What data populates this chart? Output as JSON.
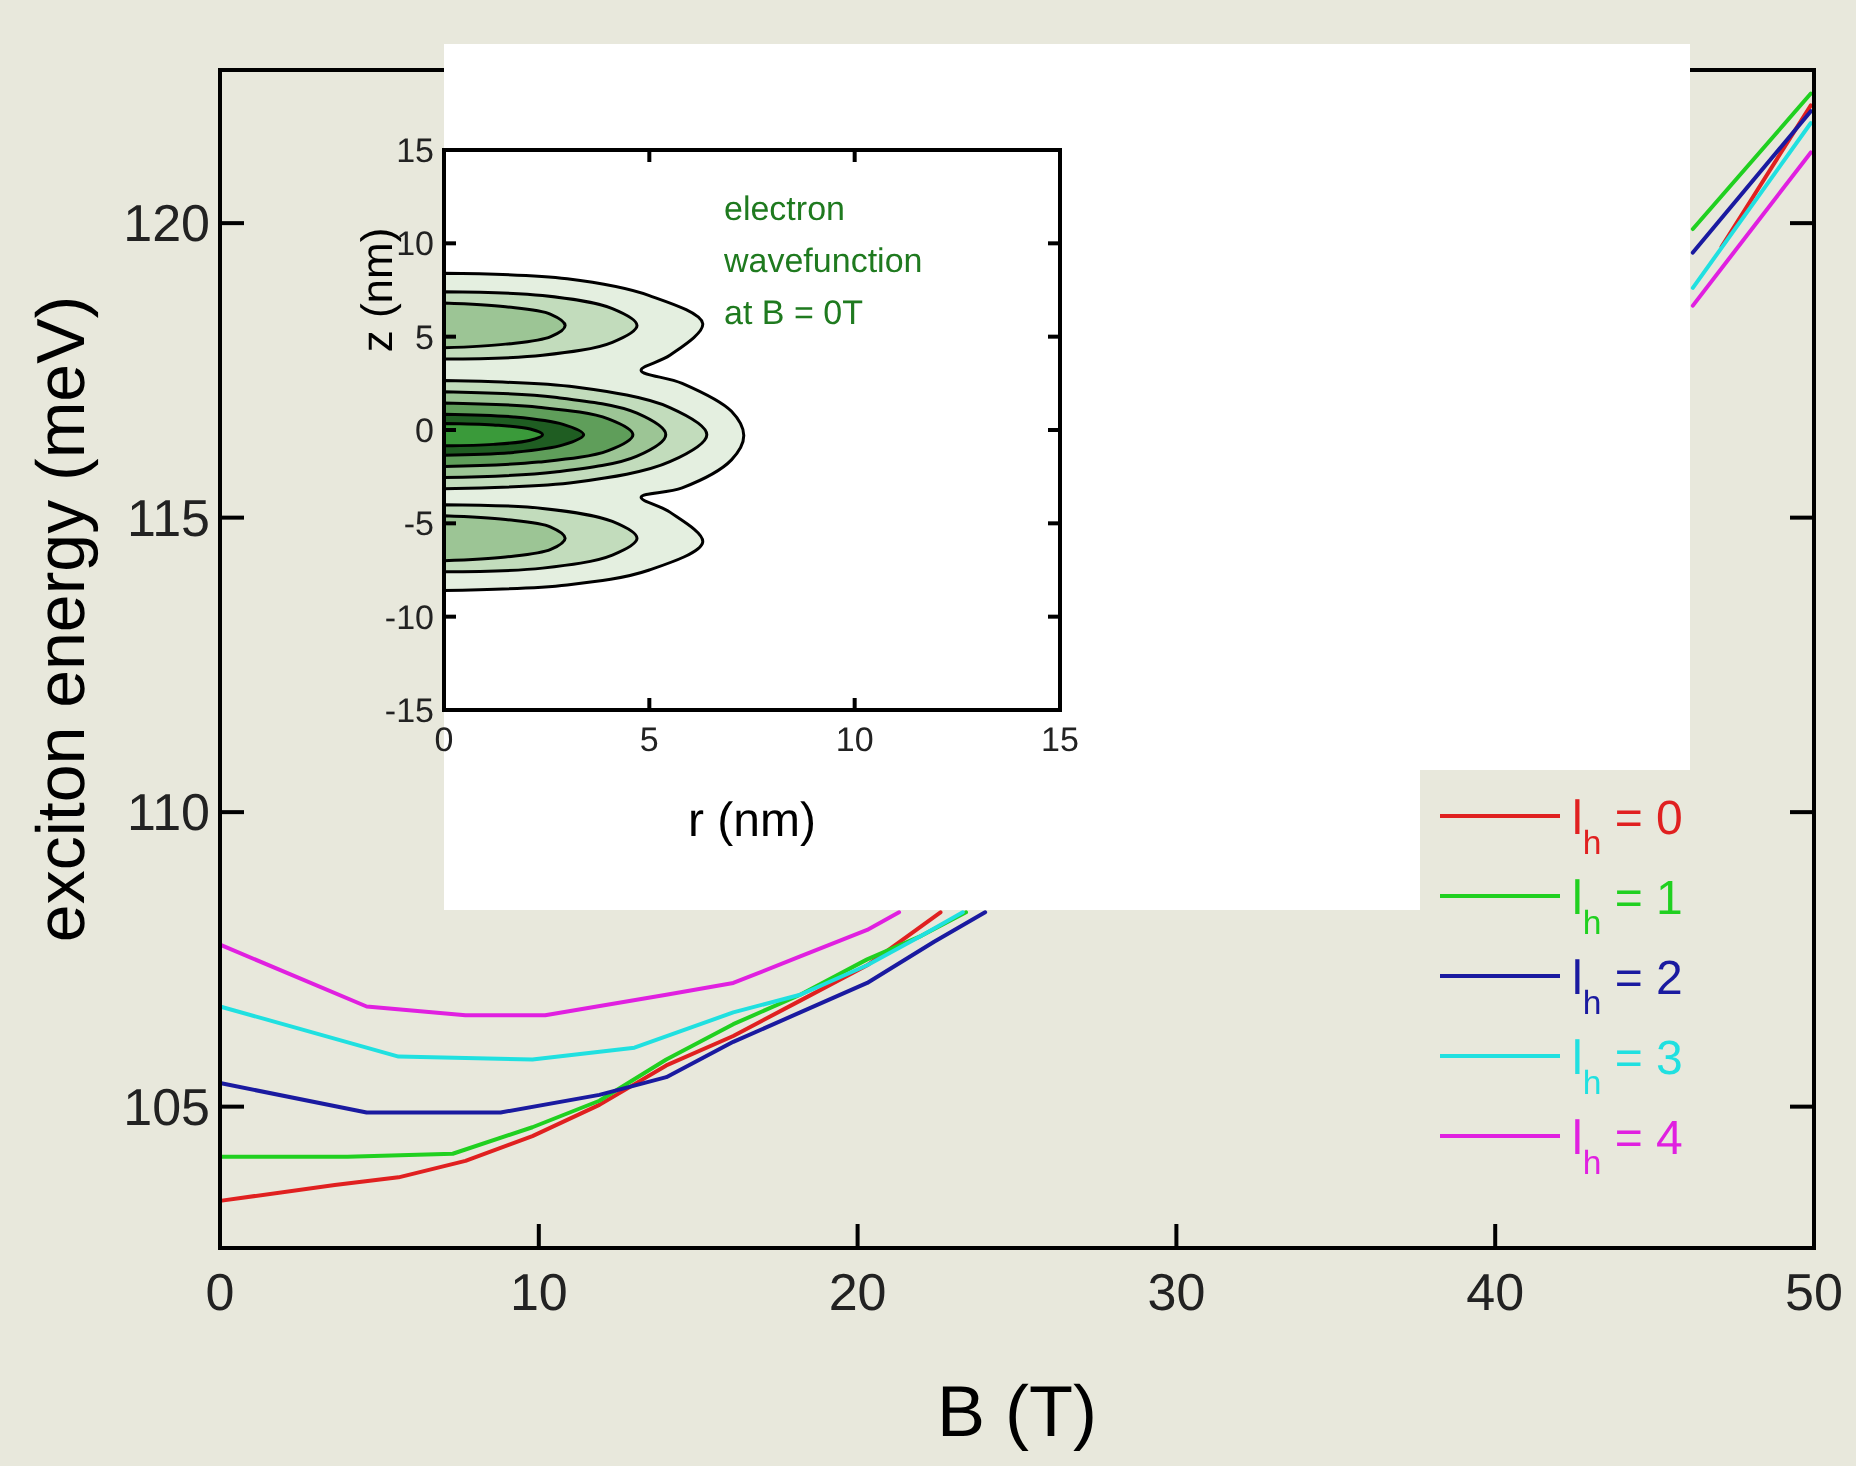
{
  "chart_data": [
    {
      "type": "line",
      "xlabel": "B (T)",
      "ylabel": "exciton energy (meV)",
      "xlim": [
        0,
        50
      ],
      "xticks": [
        0,
        10,
        20,
        30,
        40,
        50
      ],
      "ylim": [
        102.6,
        122.6
      ],
      "yticks": [
        105,
        110,
        115,
        120
      ],
      "grid": false,
      "legend": "bottom right",
      "series": [
        {
          "name": "l$_{h}$ = 0",
          "color": "#e02020",
          "x": [
            0,
            3.6,
            5.6,
            7.7,
            9.8,
            11.9,
            14,
            16.1,
            18.2,
            20.3,
            22.6,
            35,
            47.1,
            49.9
          ],
          "values": [
            103.4,
            103.67,
            103.8,
            104.08,
            104.5,
            105.03,
            105.7,
            106.2,
            106.8,
            107.4,
            108.3,
            null,
            119.6,
            122.0
          ]
        },
        {
          "name": "l$_{h}$ = 1",
          "color": "#20d020",
          "x": [
            0,
            4,
            7.3,
            9.8,
            11.9,
            14,
            16.1,
            18.2,
            20.3,
            22,
            23.4,
            35,
            46.2,
            49.9
          ],
          "values": [
            104.15,
            104.15,
            104.2,
            104.65,
            105.1,
            105.8,
            106.4,
            106.9,
            107.5,
            107.9,
            108.3,
            null,
            119.9,
            122.2
          ]
        },
        {
          "name": "l$_{h}$ = 2",
          "color": "#1a1aa0",
          "x": [
            0,
            4.6,
            8.8,
            11.9,
            14,
            16.1,
            18.2,
            20.3,
            22.4,
            24,
            35,
            46.2,
            49.9
          ],
          "values": [
            105.4,
            104.9,
            104.9,
            105.2,
            105.5,
            106.1,
            106.6,
            107.1,
            107.8,
            108.3,
            null,
            119.5,
            121.9
          ]
        },
        {
          "name": "l$_{h}$ = 3",
          "color": "#20e0e0",
          "x": [
            0,
            5.6,
            9.8,
            13,
            16.1,
            18.2,
            20.3,
            22,
            23.3,
            35,
            46.2,
            49.9
          ],
          "values": [
            106.7,
            105.85,
            105.8,
            106.0,
            106.6,
            106.9,
            107.4,
            107.9,
            108.3,
            null,
            118.9,
            121.7
          ]
        },
        {
          "name": "l$_{h}$ = 4",
          "color": "#e020e0",
          "x": [
            0,
            4.6,
            7.7,
            10.2,
            14,
            16.1,
            18.2,
            20.3,
            21.3,
            35,
            46.2,
            49.9
          ],
          "values": [
            107.75,
            106.7,
            106.55,
            106.55,
            106.9,
            107.1,
            107.55,
            108.0,
            108.3,
            null,
            118.6,
            121.2
          ]
        }
      ]
    },
    {
      "type": "area",
      "xlabel": "r (nm)",
      "ylabel": "z (nm)",
      "xlim": [
        0,
        15
      ],
      "xticks": [
        0,
        5,
        10,
        15
      ],
      "ylim": [
        -15,
        15
      ],
      "yticks": [
        -15,
        -10,
        -5,
        0,
        5,
        10,
        15
      ],
      "annotations": [
        "electron\nwavefunction\nat B = 0T"
      ],
      "series": [
        {
          "color": "#e4efe0",
          "x": [
            0,
            3,
            5,
            6.3,
            5.5,
            4.8,
            5.8,
            7,
            7.3,
            7,
            5.8,
            4.8,
            5.5,
            6.3,
            5,
            3,
            0
          ],
          "values": [
            8.4,
            8.1,
            7.2,
            5.7,
            4.0,
            3.2,
            2.5,
            1.0,
            -0.3,
            -1.6,
            -3.1,
            -3.6,
            -4.4,
            -6.0,
            -7.5,
            -8.3,
            -8.6
          ]
        },
        {
          "color": "#c2dcbc",
          "x": [
            0,
            2.4,
            4.1,
            4.7,
            4.1,
            2.4,
            0
          ],
          "values": [
            7.4,
            7.2,
            6.5,
            5.6,
            4.7,
            4.0,
            3.8
          ]
        },
        {
          "color": "#c2dcbc",
          "x": [
            0,
            3.2,
            5.5,
            6.4,
            5.5,
            3.2,
            0
          ],
          "values": [
            2.65,
            2.3,
            1.2,
            -0.25,
            -1.7,
            -2.8,
            -3.15
          ]
        },
        {
          "color": "#c2dcbc",
          "x": [
            0,
            2.4,
            4.1,
            4.7,
            4.1,
            2.4,
            0
          ],
          "values": [
            -4.0,
            -4.2,
            -4.9,
            -5.8,
            -6.7,
            -7.4,
            -7.6
          ]
        },
        {
          "color": "#9cc595",
          "x": [
            0,
            1.5,
            2.6,
            2.95,
            2.6,
            1.5,
            0
          ],
          "values": [
            6.8,
            6.6,
            6.2,
            5.6,
            5.0,
            4.6,
            4.4
          ]
        },
        {
          "color": "#9cc595",
          "x": [
            0,
            2.7,
            4.7,
            5.4,
            4.7,
            2.7,
            0
          ],
          "values": [
            2.05,
            1.75,
            0.9,
            -0.25,
            -1.4,
            -2.25,
            -2.55
          ]
        },
        {
          "color": "#9cc595",
          "x": [
            0,
            1.5,
            2.6,
            2.95,
            2.6,
            1.5,
            0
          ],
          "values": [
            -4.6,
            -4.8,
            -5.2,
            -5.8,
            -6.4,
            -6.8,
            -7.0
          ]
        },
        {
          "color": "#5f9e5a",
          "x": [
            0,
            2.3,
            4.0,
            4.6,
            4.0,
            2.3,
            0
          ],
          "values": [
            1.45,
            1.22,
            0.6,
            -0.25,
            -1.1,
            -1.72,
            -1.95
          ]
        },
        {
          "color": "#1f5d22",
          "x": [
            0,
            1.7,
            2.9,
            3.4,
            2.9,
            1.7,
            0
          ],
          "values": [
            0.85,
            0.7,
            0.3,
            -0.25,
            -0.8,
            -1.2,
            -1.35
          ]
        },
        {
          "color": "#3a9a3a",
          "x": [
            0,
            1.2,
            2.1,
            2.4,
            2.1,
            1.2,
            0
          ],
          "values": [
            0.35,
            0.27,
            0.05,
            -0.25,
            -0.55,
            -0.77,
            -0.85
          ]
        }
      ]
    }
  ]
}
